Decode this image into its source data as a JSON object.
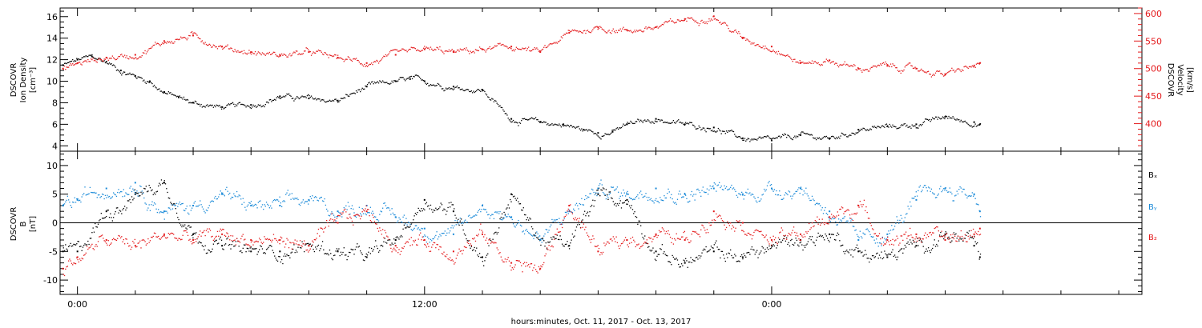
{
  "colors": {
    "black": "#000000",
    "blue": "#1a8ad8",
    "red": "#e41a1c"
  },
  "chart_data": [
    {
      "type": "scatter",
      "panel": "top",
      "x_axis": {
        "unit": "hours from 00:00",
        "range": [
          -0.6,
          36.8
        ],
        "major_ticks": [
          0,
          12,
          24
        ],
        "tick_labels": [
          "0:00",
          "12:00",
          "0:00"
        ],
        "minor_step": 2
      },
      "ylabel_left": [
        "DSCOVR",
        "Ion Density",
        "[cm⁻³]"
      ],
      "ylabel_right": [
        "DSCOVR",
        "Velocity",
        "[km/s]"
      ],
      "left_axis": {
        "range": [
          3.5,
          16.8
        ],
        "ticks": [
          4,
          6,
          8,
          10,
          12,
          14,
          16
        ],
        "minor_step": 0.5
      },
      "right_axis": {
        "range": [
          350,
          610
        ],
        "ticks": [
          400,
          450,
          500,
          550,
          600
        ],
        "minor_step": 10
      },
      "series": [
        {
          "axis": "left",
          "color": "black",
          "x": [
            -0.5,
            0,
            0.5,
            1,
            1.5,
            2,
            2.5,
            3,
            3.5,
            4,
            5,
            6,
            7,
            8,
            9,
            10,
            11,
            11.5,
            12,
            13,
            14,
            15,
            16,
            16.8,
            17.5,
            18,
            18.5,
            19,
            20,
            21,
            22,
            23,
            24,
            25,
            26,
            27,
            28,
            29,
            30,
            31,
            31.2
          ],
          "y": [
            11.5,
            12,
            12.3,
            11.8,
            11,
            10.5,
            10,
            9,
            8.5,
            8,
            7.6,
            7.8,
            8.6,
            8.4,
            8.2,
            9.5,
            10,
            10.2,
            10,
            9.5,
            9.2,
            6.5,
            6.2,
            6,
            5.5,
            5.2,
            5.3,
            6,
            6.5,
            6,
            5.7,
            4.7,
            4.5,
            5,
            4.7,
            5.5,
            5.8,
            6,
            6.7,
            6.2,
            6
          ]
        },
        {
          "axis": "right",
          "color": "red",
          "x": [
            -0.5,
            0,
            1,
            2,
            3,
            4,
            5,
            6,
            7,
            8,
            9,
            10,
            11,
            12,
            13,
            14,
            15,
            16,
            17,
            18,
            19,
            20,
            21,
            22,
            23,
            24,
            25,
            26,
            27,
            28,
            29,
            30,
            31,
            31.2
          ],
          "y": [
            500,
            510,
            520,
            525,
            550,
            560,
            540,
            530,
            525,
            530,
            520,
            510,
            525,
            535,
            530,
            535,
            540,
            530,
            565,
            575,
            570,
            575,
            590,
            595,
            555,
            540,
            510,
            515,
            500,
            505,
            500,
            490,
            505,
            510
          ]
        }
      ]
    },
    {
      "type": "scatter",
      "panel": "bottom",
      "x_axis": {
        "unit": "hours from 00:00",
        "range": [
          -0.6,
          36.8
        ],
        "major_ticks": [
          0,
          12,
          24
        ],
        "tick_labels": [
          "0:00",
          "12:00",
          "0:00"
        ],
        "minor_step": 2
      },
      "ylabel_left": [
        "DSCOVR",
        "B",
        "[nT]"
      ],
      "left_axis": {
        "range": [
          -12.5,
          12.5
        ],
        "ticks": [
          -10,
          -5,
          0,
          5,
          10
        ],
        "minor_step": 1
      },
      "zero_line": true,
      "legend": [
        {
          "text": "Bₓ",
          "color": "black"
        },
        {
          "text": "Bᵧ",
          "color": "blue"
        },
        {
          "text": "B₂",
          "color": "red"
        }
      ],
      "series": [
        {
          "name": "Bₓ",
          "color": "black",
          "x": [
            -0.5,
            0,
            1,
            2,
            3,
            4,
            5,
            6,
            7,
            8,
            9,
            10,
            11,
            12,
            13,
            14,
            15,
            16,
            17,
            18,
            19,
            20,
            21,
            22,
            23,
            24,
            25,
            26,
            27,
            28,
            29,
            30,
            31,
            31.2
          ],
          "y": [
            -5,
            -5,
            2,
            5,
            7,
            -2,
            -4,
            -5,
            -5,
            -4,
            -5,
            -6,
            -3,
            4,
            2,
            -6,
            5,
            -3,
            -4,
            5,
            4,
            -5,
            -7,
            -5,
            -6,
            -4,
            -3,
            -2,
            -5,
            -6,
            -4,
            -2,
            -4,
            -6
          ]
        },
        {
          "name": "Bᵧ",
          "color": "blue",
          "x": [
            -0.5,
            0,
            1,
            2,
            3,
            4,
            5,
            6,
            7,
            8,
            9,
            10,
            11,
            12,
            13,
            14,
            15,
            16,
            17,
            18,
            19,
            20,
            21,
            22,
            23,
            24,
            25,
            26,
            27,
            28,
            29,
            30,
            31,
            31.2
          ],
          "y": [
            3,
            4,
            6,
            7,
            2,
            3,
            5,
            3,
            3,
            4,
            2,
            3,
            1,
            -1,
            -2,
            3,
            1,
            -3,
            2,
            6,
            5,
            6,
            5,
            6,
            5,
            6,
            6,
            2,
            -3,
            -2,
            4,
            6,
            5,
            2
          ]
        },
        {
          "name": "B₂",
          "color": "red",
          "x": [
            -0.5,
            0,
            1,
            2,
            3,
            4,
            5,
            6,
            7,
            8,
            9,
            10,
            11,
            12,
            13,
            14,
            15,
            16,
            17,
            18,
            19,
            20,
            21,
            22,
            23,
            24,
            25,
            26,
            27,
            28,
            29,
            30,
            31,
            31.2
          ],
          "y": [
            -8,
            -6,
            -3,
            -4,
            -2,
            -3,
            -2,
            -3,
            -3,
            -4,
            0,
            2,
            -4,
            -3,
            -5,
            -2,
            -7,
            -8,
            3,
            -5,
            -3,
            -2,
            -3,
            2,
            0,
            -3,
            -2,
            1,
            3,
            -3,
            -2,
            -3,
            -2,
            -1
          ]
        }
      ]
    }
  ],
  "shared_xlabel": "hours:minutes, Oct. 11, 2017 - Oct. 13, 2017"
}
